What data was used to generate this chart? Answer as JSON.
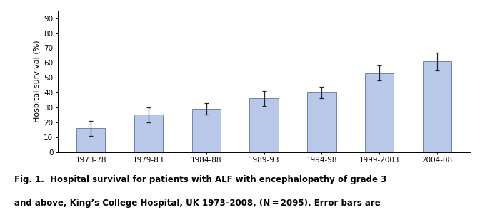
{
  "categories": [
    "1973-78",
    "1979-83",
    "1984-88",
    "1989-93",
    "1994-98",
    "1999-2003",
    "2004-08"
  ],
  "values": [
    16,
    25,
    29,
    36,
    40,
    53,
    61
  ],
  "errors": [
    5,
    5,
    4,
    5,
    4,
    5,
    6
  ],
  "bar_color": "#b8c8e8",
  "bar_edge_color": "#7080b0",
  "ylabel": "Hospital survival (%)",
  "yticks": [
    0,
    10,
    20,
    30,
    40,
    50,
    60,
    70,
    80,
    90
  ],
  "ylim": [
    0,
    95
  ],
  "caption_line1": "Fig. 1.  Hospital survival for patients with ALF with encephalopathy of grade 3",
  "caption_line2": "and above, King’s College Hospital, UK 1973–2008, (N = 2095). Error bars are",
  "background_color": "#ffffff",
  "axis_fontsize": 8,
  "tick_fontsize": 7.5,
  "caption_fontsize": 8.5
}
